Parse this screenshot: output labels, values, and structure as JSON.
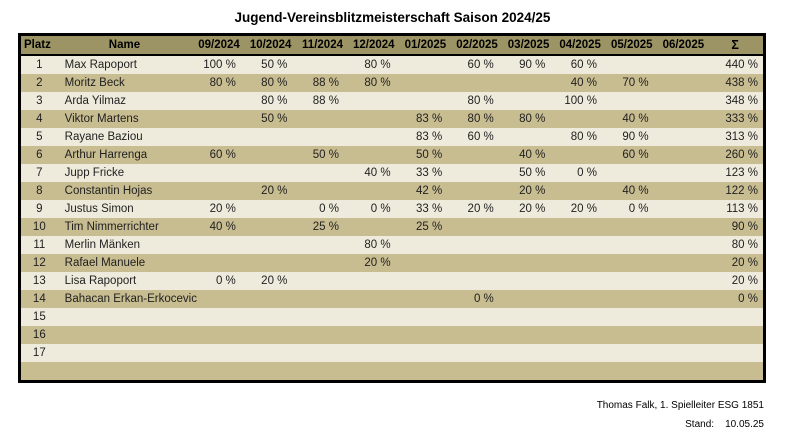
{
  "title": "Jugend-Vereinsblitzmeisterschaft Saison 2024/25",
  "colors": {
    "header_bg": "#9c9464",
    "row_odd_bg": "#eeebdc",
    "row_even_bg": "#c8bc91",
    "border": "#000000"
  },
  "table": {
    "columns": [
      "Platz",
      "Name",
      "09/2024",
      "10/2024",
      "11/2024",
      "12/2024",
      "01/2025",
      "02/2025",
      "03/2025",
      "04/2025",
      "05/2025",
      "06/2025",
      "Σ"
    ],
    "rows": [
      {
        "platz": "1",
        "name": "Max Rapoport",
        "months": [
          "100 %",
          "50 %",
          "",
          "80 %",
          "",
          "60 %",
          "90 %",
          "60 %",
          "",
          ""
        ],
        "sum": "440 %"
      },
      {
        "platz": "2",
        "name": "Moritz Beck",
        "months": [
          "80 %",
          "80 %",
          "88 %",
          "80 %",
          "",
          "",
          "",
          "40 %",
          "70 %",
          ""
        ],
        "sum": "438 %"
      },
      {
        "platz": "3",
        "name": "Arda Yilmaz",
        "months": [
          "",
          "80 %",
          "88 %",
          "",
          "",
          "80 %",
          "",
          "100 %",
          "",
          ""
        ],
        "sum": "348 %"
      },
      {
        "platz": "4",
        "name": "Viktor Martens",
        "months": [
          "",
          "50 %",
          "",
          "",
          "83 %",
          "80 %",
          "80 %",
          "",
          "40 %",
          ""
        ],
        "sum": "333 %"
      },
      {
        "platz": "5",
        "name": "Rayane Baziou",
        "months": [
          "",
          "",
          "",
          "",
          "83 %",
          "60 %",
          "",
          "80 %",
          "90 %",
          ""
        ],
        "sum": "313 %"
      },
      {
        "platz": "6",
        "name": "Arthur Harrenga",
        "months": [
          "60 %",
          "",
          "50 %",
          "",
          "50 %",
          "",
          "40 %",
          "",
          "60 %",
          ""
        ],
        "sum": "260 %"
      },
      {
        "platz": "7",
        "name": "Jupp Fricke",
        "months": [
          "",
          "",
          "",
          "40 %",
          "33 %",
          "",
          "50 %",
          "0 %",
          "",
          ""
        ],
        "sum": "123 %"
      },
      {
        "platz": "8",
        "name": "Constantin Hojas",
        "months": [
          "",
          "20 %",
          "",
          "",
          "42 %",
          "",
          "20 %",
          "",
          "40 %",
          ""
        ],
        "sum": "122 %"
      },
      {
        "platz": "9",
        "name": "Justus Simon",
        "months": [
          "20 %",
          "",
          "0 %",
          "0 %",
          "33 %",
          "20 %",
          "20 %",
          "20 %",
          "0 %",
          ""
        ],
        "sum": "113 %"
      },
      {
        "platz": "10",
        "name": "Tim Nimmerrichter",
        "months": [
          "40 %",
          "",
          "25 %",
          "",
          "25 %",
          "",
          "",
          "",
          "",
          ""
        ],
        "sum": "90 %"
      },
      {
        "platz": "11",
        "name": "Merlin Mänken",
        "months": [
          "",
          "",
          "",
          "80 %",
          "",
          "",
          "",
          "",
          "",
          ""
        ],
        "sum": "80 %"
      },
      {
        "platz": "12",
        "name": "Rafael Manuele",
        "months": [
          "",
          "",
          "",
          "20 %",
          "",
          "",
          "",
          "",
          "",
          ""
        ],
        "sum": "20 %"
      },
      {
        "platz": "13",
        "name": "Lisa Rapoport",
        "months": [
          "0 %",
          "20 %",
          "",
          "",
          "",
          "",
          "",
          "",
          "",
          ""
        ],
        "sum": "20 %"
      },
      {
        "platz": "14",
        "name": "Bahacan Erkan-Erkocevic",
        "months": [
          "",
          "",
          "",
          "",
          "",
          "0 %",
          "",
          "",
          "",
          ""
        ],
        "sum": "0 %"
      },
      {
        "platz": "15",
        "name": "",
        "months": [
          "",
          "",
          "",
          "",
          "",
          "",
          "",
          "",
          "",
          ""
        ],
        "sum": ""
      },
      {
        "platz": "16",
        "name": "",
        "months": [
          "",
          "",
          "",
          "",
          "",
          "",
          "",
          "",
          "",
          ""
        ],
        "sum": ""
      },
      {
        "platz": "17",
        "name": "",
        "months": [
          "",
          "",
          "",
          "",
          "",
          "",
          "",
          "",
          "",
          ""
        ],
        "sum": ""
      },
      {
        "platz": "",
        "name": "",
        "months": [
          "",
          "",
          "",
          "",
          "",
          "",
          "",
          "",
          "",
          ""
        ],
        "sum": ""
      }
    ]
  },
  "footer": {
    "line1": "Thomas Falk, 1. Spielleiter ESG 1851",
    "stand_label": "Stand:",
    "stand_value": "10.05.25"
  }
}
